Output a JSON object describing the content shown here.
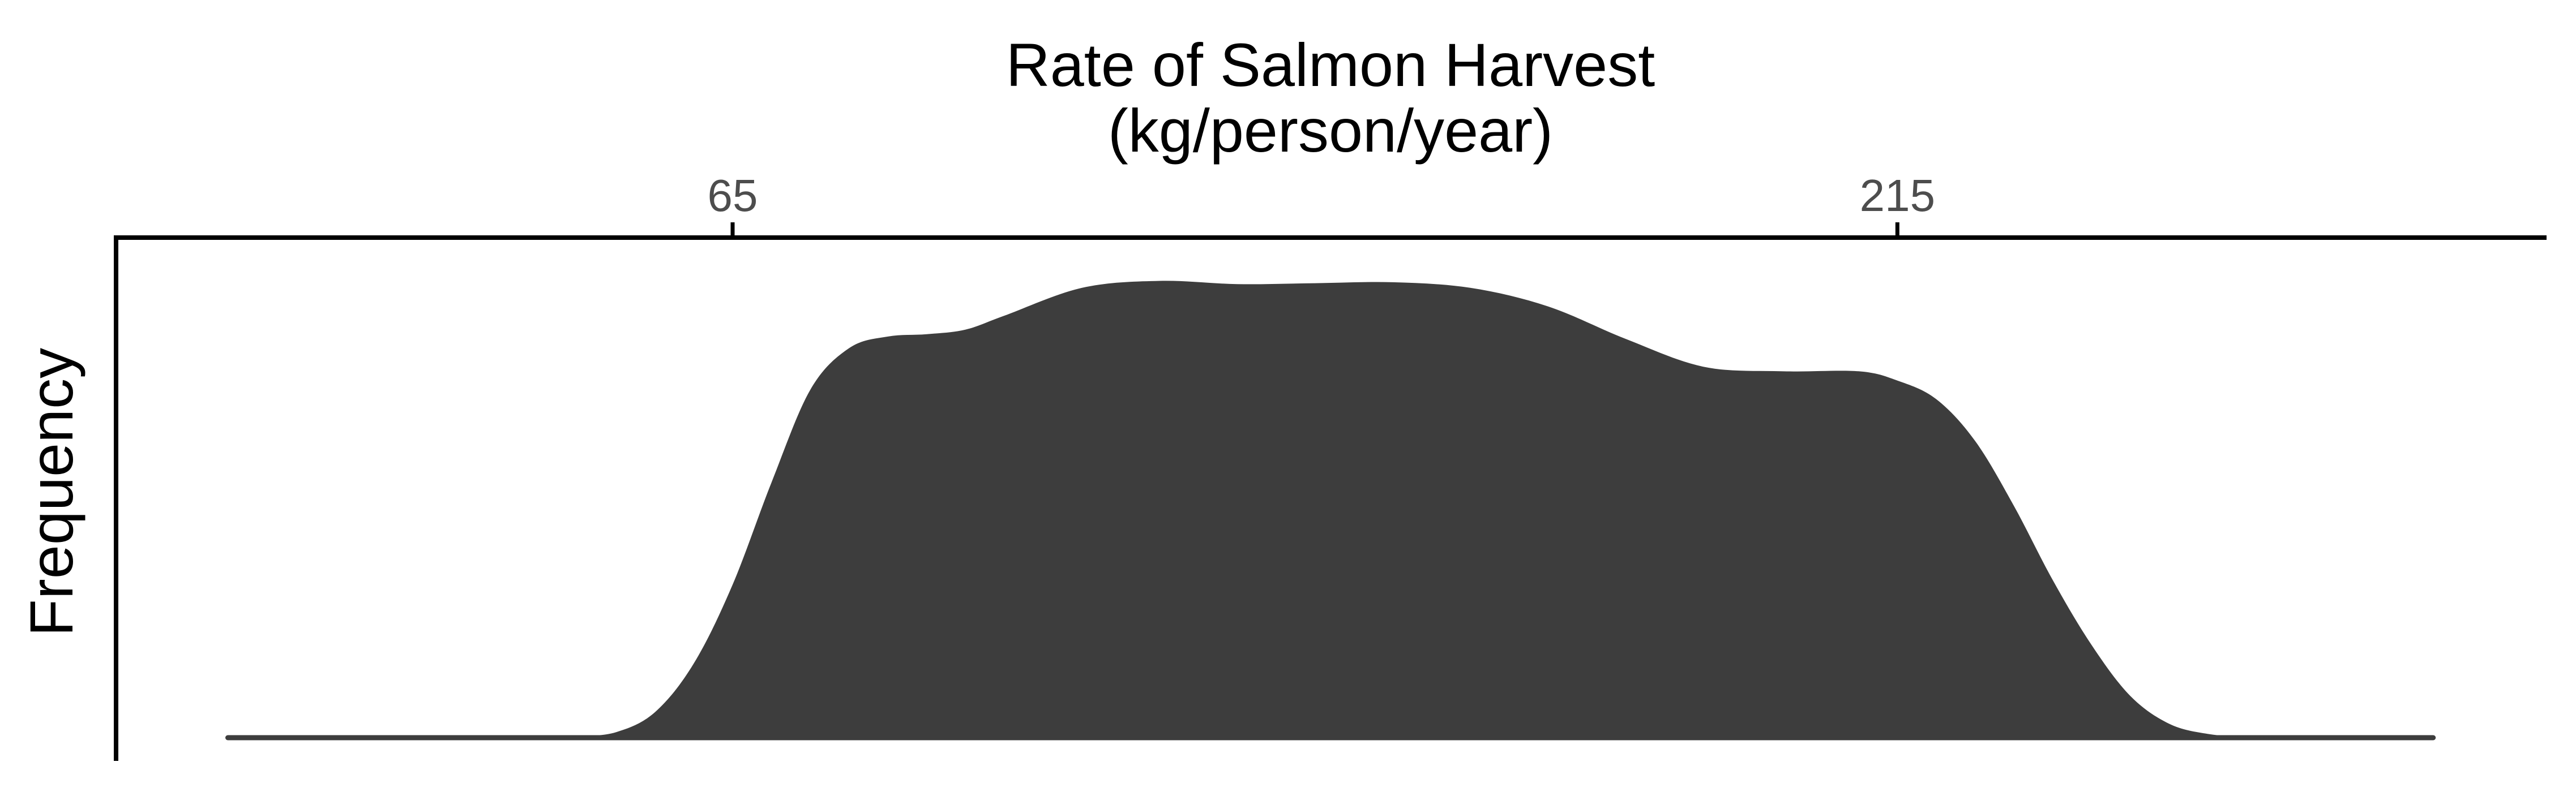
{
  "chart_data": {
    "type": "area",
    "title_lines": [
      "Rate of Salmon Harvest",
      "(kg/person/year)"
    ],
    "xlabel": "",
    "ylabel": "Frequency",
    "x_axis_position": "top",
    "x_ticks": [
      65,
      215
    ],
    "xlim": [
      -14.4,
      298.6
    ],
    "ylim": [
      0,
      1.06
    ],
    "grid": false,
    "fill_color": "#3d3d3d",
    "axis_color": "#000000",
    "baseline": {
      "x_start": 0,
      "x_end": 284
    },
    "x": [
      0,
      20,
      40,
      45,
      50,
      55,
      60,
      65,
      70,
      75,
      80,
      85,
      90,
      95,
      100,
      110,
      120,
      130,
      140,
      150,
      160,
      170,
      180,
      190,
      200,
      210,
      215,
      220,
      225,
      230,
      235,
      240,
      245,
      250,
      255,
      260,
      265,
      270,
      275,
      284
    ],
    "density": [
      0.0,
      0.0,
      0.0,
      0.003,
      0.012,
      0.055,
      0.16,
      0.33,
      0.55,
      0.75,
      0.84,
      0.865,
      0.87,
      0.88,
      0.91,
      0.97,
      0.985,
      0.978,
      0.98,
      0.982,
      0.97,
      0.93,
      0.86,
      0.8,
      0.79,
      0.79,
      0.77,
      0.73,
      0.64,
      0.5,
      0.34,
      0.2,
      0.09,
      0.03,
      0.008,
      0.002,
      0.0,
      0.0,
      0.0,
      0.0
    ]
  }
}
